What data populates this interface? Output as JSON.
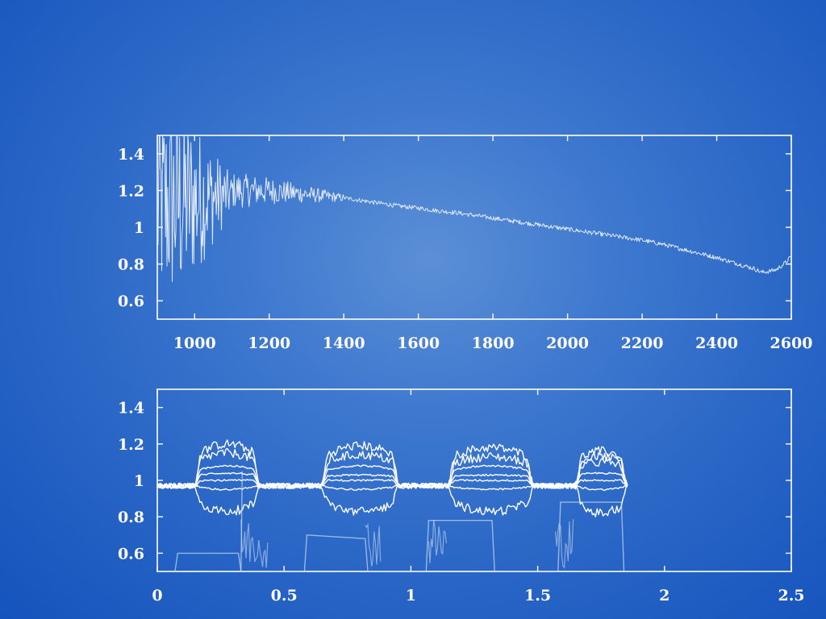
{
  "chart_data": [
    {
      "type": "line",
      "title": "",
      "xlabel": "",
      "ylabel": "",
      "xlim": [
        900,
        2600
      ],
      "ylim": [
        0.5,
        1.5
      ],
      "x_ticks": [
        "1000",
        "1200",
        "1400",
        "1600",
        "1800",
        "2000",
        "2200",
        "2400",
        "2600"
      ],
      "y_ticks": [
        "0.6",
        "0.8",
        "1",
        "1.2",
        "1.4"
      ],
      "grid": false,
      "series": [
        {
          "color": "#ffffff",
          "x": [
            900,
            910,
            920,
            930,
            950,
            1000,
            1050,
            1100,
            1150,
            1200,
            1250,
            1300,
            1350,
            1400,
            1450,
            1500,
            1550,
            1600,
            1650,
            1700,
            1750,
            1800,
            1850,
            1900,
            1950,
            2000,
            2050,
            2100,
            2150,
            2200,
            2250,
            2300,
            2350,
            2400,
            2450,
            2500,
            2520,
            2540,
            2560,
            2580,
            2600
          ],
          "y": [
            0.85,
            1.45,
            0.7,
            1.35,
            1.05,
            1.22,
            1.3,
            1.25,
            1.21,
            1.2,
            1.19,
            1.18,
            1.17,
            1.16,
            1.145,
            1.13,
            1.115,
            1.105,
            1.09,
            1.08,
            1.065,
            1.05,
            1.035,
            1.02,
            1.005,
            0.99,
            0.975,
            0.96,
            0.945,
            0.93,
            0.91,
            0.885,
            0.86,
            0.835,
            0.805,
            0.775,
            0.755,
            0.76,
            0.77,
            0.8,
            0.84
          ]
        }
      ]
    },
    {
      "type": "line",
      "title": "",
      "xlabel": "",
      "ylabel": "",
      "xlim": [
        0,
        2.5
      ],
      "ylim": [
        0.5,
        1.5
      ],
      "x_ticks": [
        "0",
        "0.5",
        "1",
        "1.5",
        "2",
        "2.5"
      ],
      "y_ticks": [
        "0.6",
        "0.8",
        "1",
        "1.2",
        "1.4"
      ],
      "grid": false,
      "segments": [
        [
          0.15,
          0.4
        ],
        [
          0.65,
          0.95
        ],
        [
          1.15,
          1.48
        ],
        [
          1.65,
          1.85
        ]
      ],
      "baseline": 0.97,
      "series": [
        {
          "color": "#ffffff",
          "plateau_levels": [
            1.2,
            1.19,
            1.18,
            1.16
          ]
        },
        {
          "color": "#ffffff",
          "plateau_levels": [
            1.15,
            1.14,
            1.13,
            1.13
          ]
        },
        {
          "color": "#ffffff",
          "plateau_levels": [
            1.08,
            1.08,
            1.08,
            1.1
          ]
        },
        {
          "color": "#ffffff",
          "plateau_levels": [
            1.04,
            1.03,
            1.03,
            1.04
          ]
        },
        {
          "color": "#ffffff",
          "plateau_levels": [
            1.0,
            1.0,
            1.0,
            1.0
          ]
        },
        {
          "color": "#ffffff",
          "plateau_levels": [
            0.95,
            0.95,
            0.95,
            0.95
          ]
        },
        {
          "color": "#ffffff",
          "plateau_levels": [
            0.83,
            0.83,
            0.83,
            0.82
          ]
        },
        {
          "color": "#c9d8f0",
          "x": [
            0.07,
            0.08,
            0.32,
            0.33,
            0.58,
            0.59,
            0.82,
            0.83,
            1.06,
            1.07,
            1.32,
            1.33,
            1.58,
            1.59,
            1.83,
            1.84
          ],
          "y": [
            0.5,
            0.6,
            0.6,
            0.5,
            0.5,
            0.7,
            0.68,
            0.5,
            0.5,
            0.78,
            0.78,
            0.5,
            0.5,
            0.88,
            0.88,
            0.5
          ]
        }
      ]
    }
  ]
}
